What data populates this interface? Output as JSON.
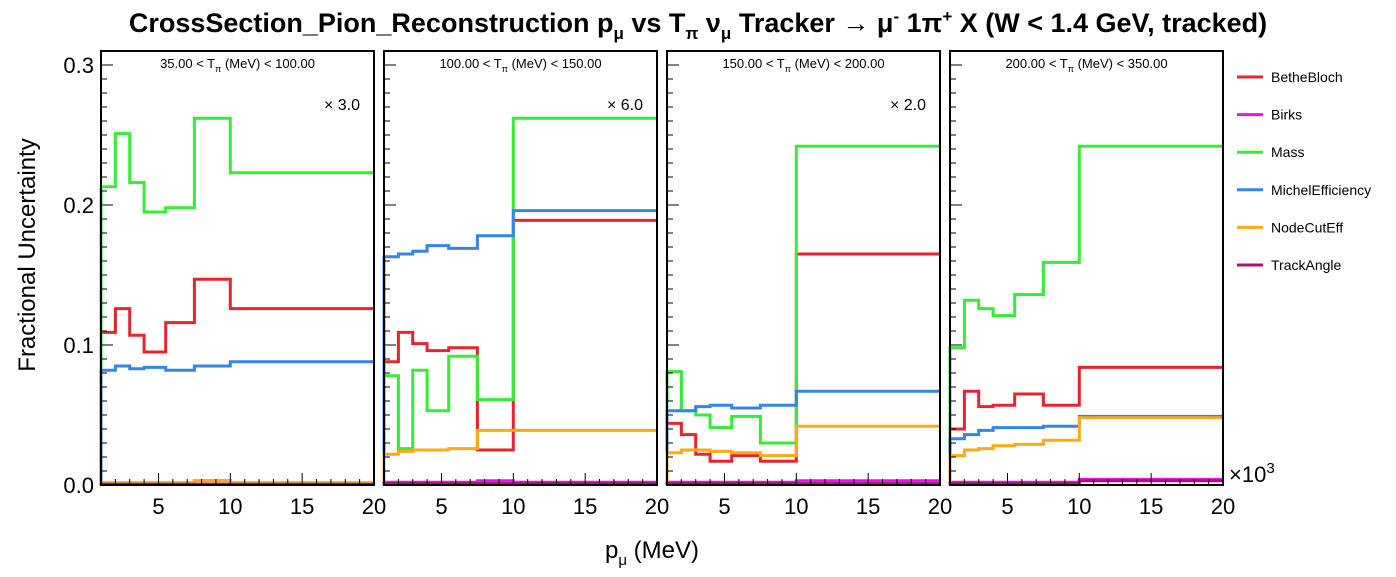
{
  "title": {
    "prefix": "CrossSection_Pion_Reconstruction p",
    "sub1": "μ",
    "mid1": " vs T",
    "sub2": "π",
    "mid2": "  ν",
    "sub3": "μ",
    "mid3": " Tracker → μ",
    "sup1": "-",
    "mid4": " 1π",
    "sup2": "+",
    "suffix": " X  (W < 1.4 GeV, tracked)"
  },
  "y_axis_label": "Fractional Uncertainty",
  "x_axis_label": {
    "main": "p",
    "sub": "μ",
    "unit": " (MeV)"
  },
  "exponent_label": {
    "base": "×10",
    "exp": "3"
  },
  "legend": [
    {
      "name": "BetheBloch",
      "color": "#e8232d"
    },
    {
      "name": "Birks",
      "color": "#ee11ee"
    },
    {
      "name": "Mass",
      "color": "#33ee33"
    },
    {
      "name": "MichelEfficiency",
      "color": "#3385ea"
    },
    {
      "name": "NodeCutEff",
      "color": "#ffaa11"
    },
    {
      "name": "TrackAngle",
      "color": "#aa1177"
    }
  ],
  "chart_data": {
    "type": "line",
    "style": "step-histogram",
    "x_tick_labels": [
      "5",
      "10",
      "15",
      "20"
    ],
    "y_tick_labels": [
      "0.0",
      "0.1",
      "0.2",
      "0.3"
    ],
    "xlim": [
      1,
      20
    ],
    "ylim": [
      0,
      0.31
    ],
    "x_bin_edges": [
      1,
      2,
      3,
      4,
      5.5,
      7.5,
      10,
      13,
      20
    ],
    "panels": [
      {
        "label": {
          "pre": "35.00 < T",
          "sub": "π",
          "post": " (MeV) < 100.00"
        },
        "scale_label": "× 3.0",
        "series": [
          {
            "name": "BetheBloch",
            "values": [
              0.109,
              0.126,
              0.107,
              0.095,
              0.116,
              0.147,
              0.126,
              0.126
            ]
          },
          {
            "name": "Birks",
            "values": [
              0.0015,
              0.0015,
              0.0015,
              0.0015,
              0.0015,
              0.003,
              0.0015,
              0.0015
            ]
          },
          {
            "name": "Mass",
            "values": [
              0.213,
              0.251,
              0.216,
              0.195,
              0.198,
              0.262,
              0.223,
              0.223
            ]
          },
          {
            "name": "MichelEfficiency",
            "values": [
              0.082,
              0.085,
              0.083,
              0.084,
              0.082,
              0.085,
              0.088,
              0.088
            ]
          },
          {
            "name": "NodeCutEff",
            "values": [
              0.0015,
              0.0015,
              0.0015,
              0.0015,
              0.0015,
              0.003,
              0.0015,
              0.0015
            ]
          },
          {
            "name": "TrackAngle",
            "values": [
              0.0005,
              0.0005,
              0.0005,
              0.0005,
              0.0005,
              0.0005,
              0.0005,
              0.0005
            ]
          }
        ]
      },
      {
        "label": {
          "pre": "100.00 < T",
          "sub": "π",
          "post": " (MeV) < 150.00"
        },
        "scale_label": "× 6.0",
        "series": [
          {
            "name": "BetheBloch",
            "values": [
              0.088,
              0.109,
              0.101,
              0.096,
              0.098,
              0.025,
              0.189,
              0.189
            ]
          },
          {
            "name": "Birks",
            "values": [
              0.002,
              0.002,
              0.002,
              0.002,
              0.002,
              0.003,
              0.002,
              0.002
            ]
          },
          {
            "name": "Mass",
            "values": [
              0.078,
              0.026,
              0.082,
              0.053,
              0.092,
              0.061,
              0.262,
              0.262
            ]
          },
          {
            "name": "MichelEfficiency",
            "values": [
              0.163,
              0.165,
              0.167,
              0.171,
              0.169,
              0.178,
              0.196,
              0.196
            ]
          },
          {
            "name": "NodeCutEff",
            "values": [
              0.022,
              0.024,
              0.025,
              0.025,
              0.026,
              0.039,
              0.039,
              0.039
            ]
          },
          {
            "name": "TrackAngle",
            "values": [
              0.001,
              0.001,
              0.001,
              0.001,
              0.001,
              0.001,
              0.001,
              0.001
            ]
          }
        ]
      },
      {
        "label": {
          "pre": "150.00 < T",
          "sub": "π",
          "post": " (MeV) < 200.00"
        },
        "scale_label": "× 2.0",
        "series": [
          {
            "name": "BetheBloch",
            "values": [
              0.044,
              0.036,
              0.022,
              0.017,
              0.021,
              0.017,
              0.165,
              0.165
            ]
          },
          {
            "name": "Birks",
            "values": [
              0.002,
              0.002,
              0.002,
              0.002,
              0.002,
              0.002,
              0.003,
              0.003
            ]
          },
          {
            "name": "Mass",
            "values": [
              0.081,
              0.053,
              0.05,
              0.041,
              0.049,
              0.03,
              0.242,
              0.242
            ]
          },
          {
            "name": "MichelEfficiency",
            "values": [
              0.053,
              0.053,
              0.056,
              0.057,
              0.055,
              0.057,
              0.067,
              0.067
            ]
          },
          {
            "name": "NodeCutEff",
            "values": [
              0.023,
              0.025,
              0.025,
              0.024,
              0.023,
              0.021,
              0.042,
              0.042
            ]
          },
          {
            "name": "TrackAngle",
            "values": [
              0.001,
              0.001,
              0.001,
              0.001,
              0.001,
              0.001,
              0.001,
              0.001
            ]
          }
        ]
      },
      {
        "label": {
          "pre": "200.00 < T",
          "sub": "π",
          "post": " (MeV) < 350.00"
        },
        "scale_label": "",
        "series": [
          {
            "name": "BetheBloch",
            "values": [
              0.04,
              0.067,
              0.056,
              0.057,
              0.065,
              0.057,
              0.084,
              0.084
            ]
          },
          {
            "name": "Birks",
            "values": [
              0.002,
              0.002,
              0.002,
              0.002,
              0.002,
              0.002,
              0.004,
              0.004
            ]
          },
          {
            "name": "Mass",
            "values": [
              0.098,
              0.132,
              0.126,
              0.121,
              0.136,
              0.159,
              0.242,
              0.242
            ]
          },
          {
            "name": "MichelEfficiency",
            "values": [
              0.033,
              0.036,
              0.039,
              0.041,
              0.041,
              0.042,
              0.049,
              0.049
            ]
          },
          {
            "name": "NodeCutEff",
            "values": [
              0.021,
              0.025,
              0.026,
              0.028,
              0.029,
              0.032,
              0.048,
              0.048
            ]
          },
          {
            "name": "TrackAngle",
            "values": [
              0.001,
              0.001,
              0.001,
              0.001,
              0.001,
              0.001,
              0.003,
              0.003
            ]
          }
        ]
      }
    ]
  }
}
